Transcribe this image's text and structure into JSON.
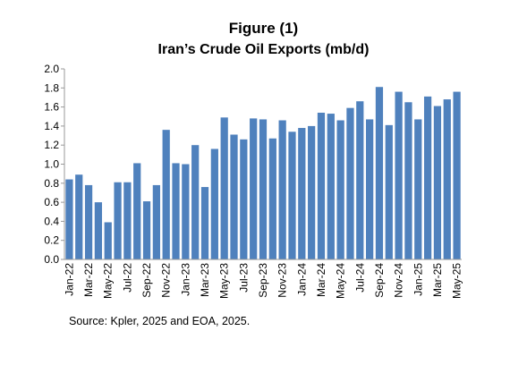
{
  "figure": {
    "title": "Figure (1)",
    "subtitle": "Iran’s Crude Oil Exports (mb/d)",
    "source": "Source: Kpler, 2025 and EOA, 2025."
  },
  "chart_data": {
    "type": "bar",
    "title": "Figure (1)",
    "subtitle": "Iran’s Crude Oil Exports (mb/d)",
    "xlabel": "",
    "ylabel": "",
    "ylim": [
      0,
      2.0
    ],
    "yticks": [
      "0.0",
      "0.2",
      "0.4",
      "0.6",
      "0.8",
      "1.0",
      "1.2",
      "1.4",
      "1.6",
      "1.8",
      "2.0"
    ],
    "bar_color": "#4F81BD",
    "grid": false,
    "legend": "none",
    "categories": [
      "Jan-22",
      "Feb-22",
      "Mar-22",
      "Apr-22",
      "May-22",
      "Jun-22",
      "Jul-22",
      "Aug-22",
      "Sep-22",
      "Oct-22",
      "Nov-22",
      "Dec-22",
      "Jan-23",
      "Feb-23",
      "Mar-23",
      "Apr-23",
      "May-23",
      "Jun-23",
      "Jul-23",
      "Aug-23",
      "Sep-23",
      "Oct-23",
      "Nov-23",
      "Dec-23",
      "Jan-24",
      "Feb-24",
      "Mar-24",
      "Apr-24",
      "May-24",
      "Jun-24",
      "Jul-24",
      "Aug-24",
      "Sep-24",
      "Oct-24",
      "Nov-24",
      "Dec-24",
      "Jan-25",
      "Feb-25",
      "Mar-25",
      "Apr-25",
      "May-25"
    ],
    "x_tick_labels": [
      "Jan-22",
      "",
      "Mar-22",
      "",
      "May-22",
      "",
      "Jul-22",
      "",
      "Sep-22",
      "",
      "Nov-22",
      "",
      "Jan-23",
      "",
      "Mar-23",
      "",
      "May-23",
      "",
      "Jul-23",
      "",
      "Sep-23",
      "",
      "Nov-23",
      "",
      "Jan-24",
      "",
      "Mar-24",
      "",
      "May-24",
      "",
      "Jul-24",
      "",
      "Sep-24",
      "",
      "Nov-24",
      "",
      "Jan-25",
      "",
      "Mar-25",
      "",
      "May-25"
    ],
    "values": [
      0.84,
      0.89,
      0.78,
      0.6,
      0.39,
      0.81,
      0.81,
      1.01,
      0.61,
      0.78,
      1.36,
      1.01,
      1.0,
      1.2,
      0.76,
      1.16,
      1.49,
      1.31,
      1.26,
      1.48,
      1.47,
      1.27,
      1.46,
      1.34,
      1.38,
      1.4,
      1.54,
      1.53,
      1.46,
      1.59,
      1.66,
      1.47,
      1.81,
      1.41,
      1.76,
      1.65,
      1.47,
      1.71,
      1.61,
      1.68,
      1.76
    ]
  }
}
